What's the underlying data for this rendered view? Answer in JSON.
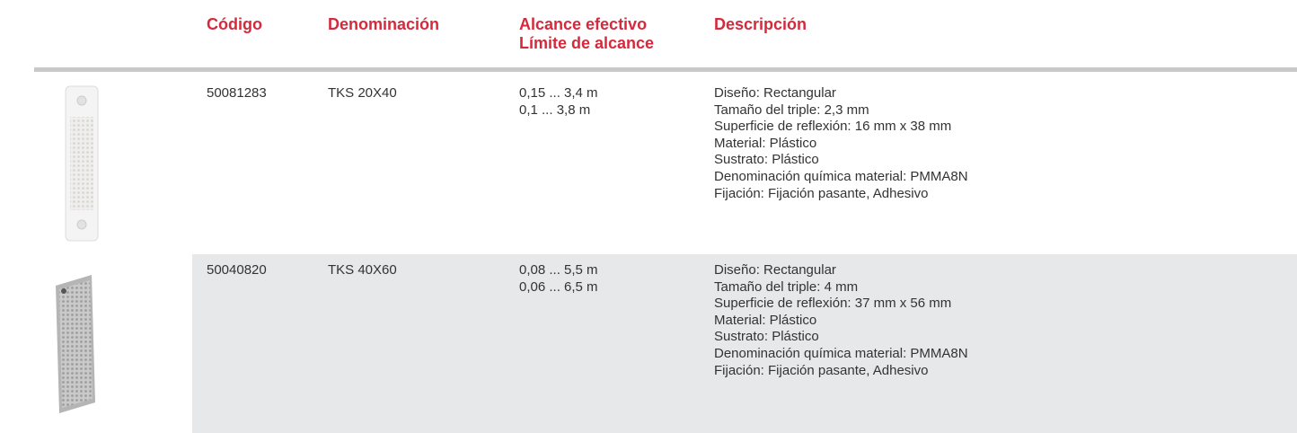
{
  "table": {
    "header": {
      "code": "Código",
      "name": "Denominación",
      "range": [
        "Alcance efectivo",
        "Límite de alcance"
      ],
      "description": "Descripción"
    },
    "rows": [
      {
        "code": "50081283",
        "name": "TKS 20X40",
        "range": [
          "0,15 ... 3,4 m",
          "0,1 ... 3,8 m"
        ],
        "description": [
          "Diseño: Rectangular",
          "Tamaño del triple: 2,3 mm",
          "Superficie de reflexión: 16 mm x 38 mm",
          "Material: Plástico",
          "Sustrato: Plástico",
          "Denominación química material: PMMA8N",
          "Fijación: Fijación pasante, Adhesivo"
        ]
      },
      {
        "code": "50040820",
        "name": "TKS 40X60",
        "range": [
          "0,08 ... 5,5 m",
          "0,06 ... 6,5 m"
        ],
        "description": [
          "Diseño: Rectangular",
          "Tamaño del triple: 4 mm",
          "Superficie de reflexión: 37 mm x 56 mm",
          "Material: Plástico",
          "Sustrato: Plástico",
          "Denominación química material: PMMA8N",
          "Fijación: Fijación pasante, Adhesivo"
        ]
      }
    ]
  }
}
